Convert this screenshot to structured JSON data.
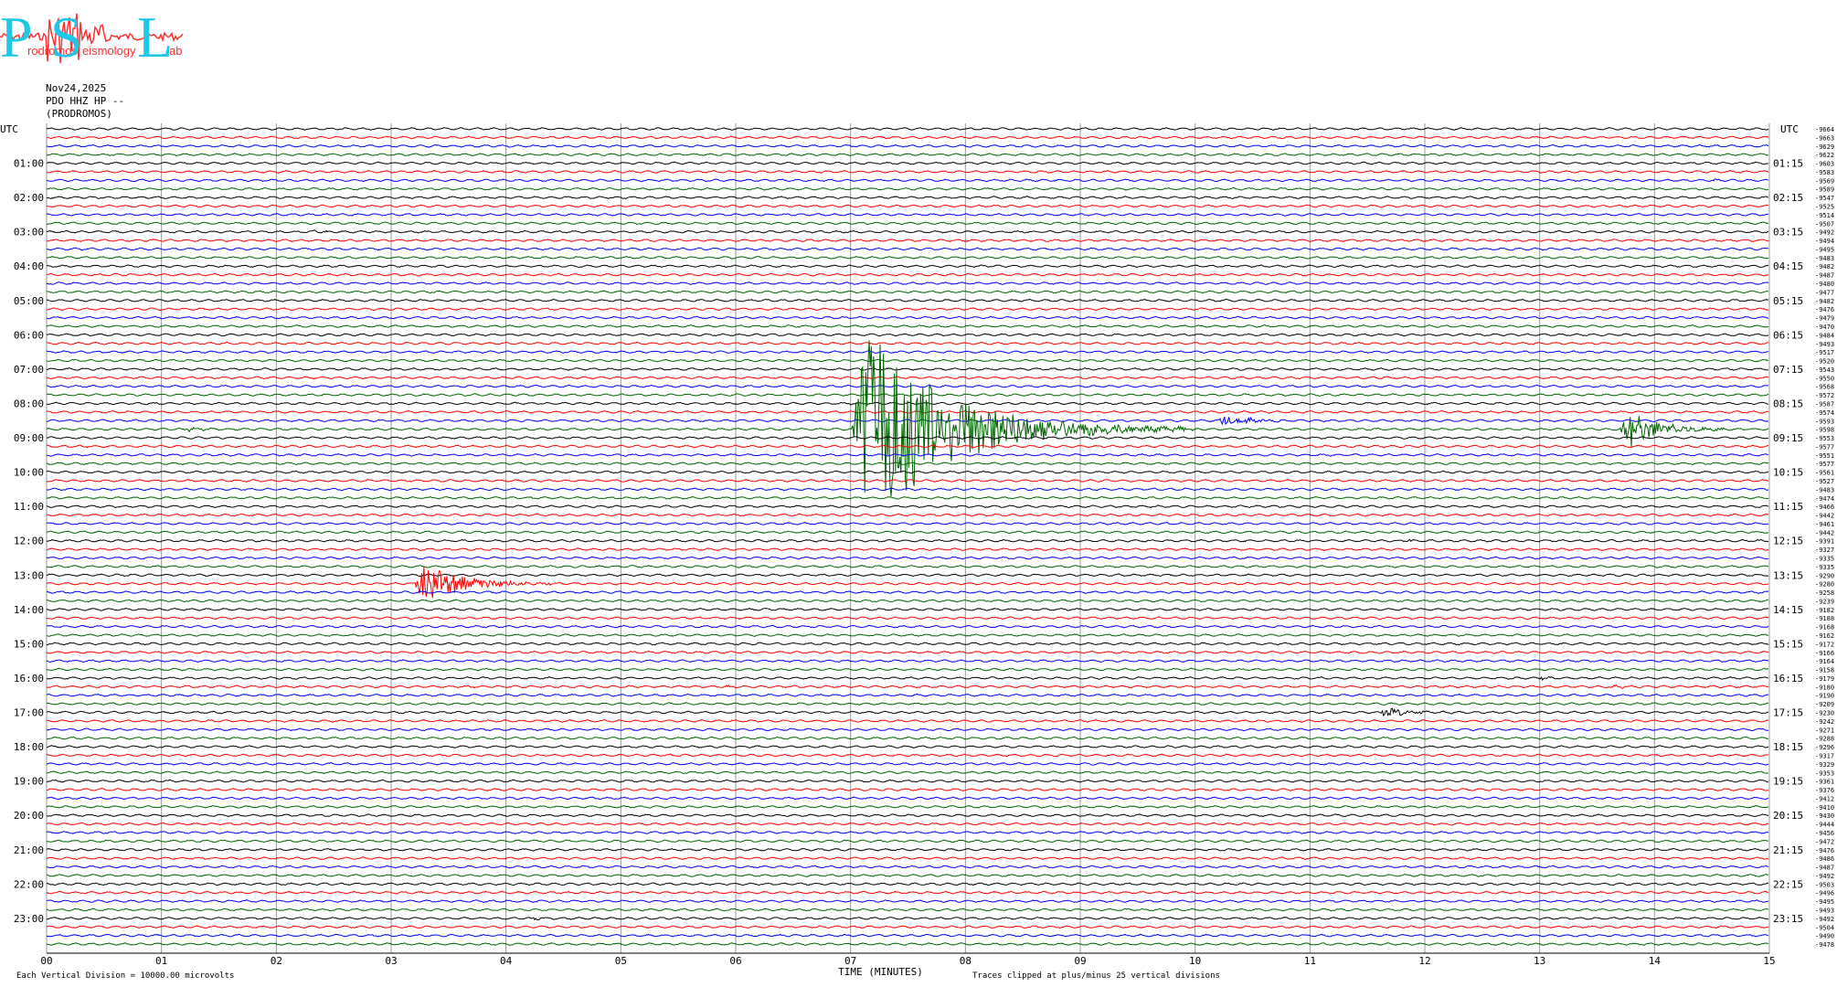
{
  "logo": {
    "letters": [
      "P",
      "S",
      "L"
    ],
    "words": [
      "rodromos",
      "eismology",
      "ab"
    ],
    "colors": {
      "letters": "#1ec8e6",
      "words": "#ff3030",
      "trace": "#ff3030"
    }
  },
  "header": {
    "date": "Nov24,2025",
    "station": "PDO HHZ HP --",
    "site": "(PRODROMOS)"
  },
  "footer": {
    "scale_note": "Each Vertical Division = 10000.00 microvolts",
    "clip_note": "Traces clipped at plus/minus 25 vertical divisions"
  },
  "chart_data": {
    "type": "line",
    "xlabel": "TIME (MINUTES)",
    "x_ticks": [
      "00",
      "01",
      "02",
      "03",
      "04",
      "05",
      "06",
      "07",
      "08",
      "09",
      "10",
      "11",
      "12",
      "13",
      "14",
      "15"
    ],
    "xlim": [
      0,
      15
    ],
    "left_axis_label": "UTC",
    "right_axis_label": "UTC",
    "left_hour_labels": [
      "01:00",
      "02:00",
      "03:00",
      "04:00",
      "05:00",
      "06:00",
      "07:00",
      "08:00",
      "09:00",
      "10:00",
      "11:00",
      "12:00",
      "13:00",
      "14:00",
      "15:00",
      "16:00",
      "17:00",
      "18:00",
      "19:00",
      "20:00",
      "21:00",
      "22:00",
      "23:00"
    ],
    "right_hour_labels": [
      "01:15",
      "02:15",
      "03:15",
      "04:15",
      "05:15",
      "06:15",
      "07:15",
      "08:15",
      "09:15",
      "10:15",
      "11:15",
      "12:15",
      "13:15",
      "14:15",
      "15:15",
      "16:15",
      "17:15",
      "18:15",
      "19:15",
      "20:15",
      "21:15",
      "22:15",
      "23:15"
    ],
    "trace_colors": [
      "#000000",
      "#ff0000",
      "#0000ff",
      "#006400"
    ],
    "trace_count": 96,
    "trace_minutes": 15,
    "right_values": [
      "-9664",
      "-9663",
      "-9629",
      "-9622",
      "-9603",
      "-9583",
      "-9569",
      "-9589",
      "-9547",
      "-9525",
      "-9514",
      "-9507",
      "-9492",
      "-9494",
      "-9495",
      "-9483",
      "-9482",
      "-9487",
      "-9480",
      "-9477",
      "-9482",
      "-9476",
      "-9479",
      "-9470",
      "-9484",
      "-9493",
      "-9517",
      "-9520",
      "-9543",
      "-9550",
      "-9568",
      "-9572",
      "-9587",
      "-9574",
      "-9593",
      "-9598",
      "-9553",
      "-9577",
      "-9551",
      "-9577",
      "-9561",
      "-9527",
      "-9483",
      "-9474",
      "-9466",
      "-9442",
      "-9461",
      "-9442",
      "-9391",
      "-9327",
      "-9335",
      "-9335",
      "-9290",
      "-9280",
      "-9258",
      "-9239",
      "-9182",
      "-9188",
      "-9168",
      "-9162",
      "-9172",
      "-9166",
      "-9164",
      "-9158",
      "-9179",
      "-9180",
      "-9190",
      "-9209",
      "-9230",
      "-9242",
      "-9271",
      "-9288",
      "-9296",
      "-9317",
      "-9329",
      "-9353",
      "-9361",
      "-9376",
      "-9412",
      "-9410",
      "-9430",
      "-9444",
      "-9456",
      "-9472",
      "-9476",
      "-9486",
      "-9487",
      "-9492",
      "-9503",
      "-9496",
      "-9495",
      "-9493",
      "-9492",
      "-9504",
      "-9490",
      "-9478"
    ],
    "events": [
      {
        "trace": 35,
        "start_min": 7.0,
        "duration_min": 3.0,
        "amplitude_div": 25,
        "clipped": true
      },
      {
        "trace": 53,
        "start_min": 3.2,
        "duration_min": 1.6,
        "amplitude_div": 4.5
      },
      {
        "trace": 34,
        "start_min": 10.2,
        "duration_min": 1.0,
        "amplitude_div": 1.2
      },
      {
        "trace": 35,
        "start_min": 13.7,
        "duration_min": 1.2,
        "amplitude_div": 4.5
      },
      {
        "trace": 35,
        "start_min": 1.2,
        "duration_min": 0.5,
        "amplitude_div": 0.5
      },
      {
        "trace": 68,
        "start_min": 11.6,
        "duration_min": 1.0,
        "amplitude_div": 1.0
      },
      {
        "trace": 48,
        "start_min": 11.85,
        "duration_min": 0.15,
        "amplitude_div": 0.5
      },
      {
        "trace": 64,
        "start_min": 13.0,
        "duration_min": 0.2,
        "amplitude_div": 0.5
      },
      {
        "trace": 65,
        "start_min": 13.6,
        "duration_min": 0.6,
        "amplitude_div": 0.4
      },
      {
        "trace": 65,
        "start_min": 5.9,
        "duration_min": 0.3,
        "amplitude_div": 0.3
      },
      {
        "trace": 92,
        "start_min": 4.2,
        "duration_min": 0.4,
        "amplitude_div": 0.4
      },
      {
        "trace": 12,
        "start_min": 2.3,
        "duration_min": 0.6,
        "amplitude_div": 0.3
      },
      {
        "trace": 8,
        "start_min": 8.5,
        "duration_min": 0.2,
        "amplitude_div": 0.3
      },
      {
        "trace": 24,
        "start_min": 11.6,
        "duration_min": 0.3,
        "amplitude_div": 0.2
      },
      {
        "trace": 29,
        "start_min": 11.6,
        "duration_min": 0.8,
        "amplitude_div": 0.2
      },
      {
        "trace": 6,
        "start_min": 14.5,
        "duration_min": 0.3,
        "amplitude_div": 0.2
      }
    ]
  }
}
